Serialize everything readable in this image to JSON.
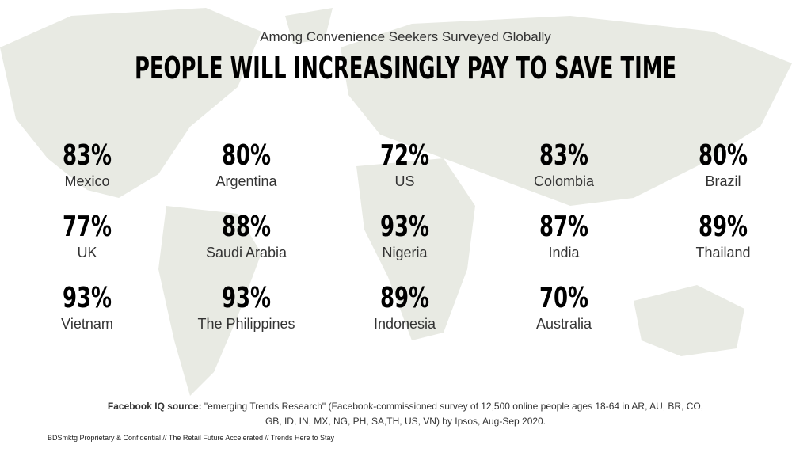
{
  "header": {
    "subtitle": "Among Convenience Seekers Surveyed Globally",
    "title": "PEOPLE WILL INCREASINGLY PAY TO SAVE TIME"
  },
  "stats": [
    {
      "value": "83%",
      "label": "Mexico"
    },
    {
      "value": "80%",
      "label": "Argentina"
    },
    {
      "value": "72%",
      "label": "US"
    },
    {
      "value": "83%",
      "label": "Colombia"
    },
    {
      "value": "80%",
      "label": "Brazil"
    },
    {
      "value": "77%",
      "label": "UK"
    },
    {
      "value": "88%",
      "label": "Saudi Arabia"
    },
    {
      "value": "93%",
      "label": "Nigeria"
    },
    {
      "value": "87%",
      "label": "India"
    },
    {
      "value": "89%",
      "label": "Thailand"
    },
    {
      "value": "93%",
      "label": "Vietnam"
    },
    {
      "value": "93%",
      "label": "The Philippines"
    },
    {
      "value": "89%",
      "label": "Indonesia"
    },
    {
      "value": "70%",
      "label": "Australia"
    }
  ],
  "source": {
    "lead": "Facebook IQ source:",
    "text": "\"emerging Trends Research\" (Facebook-commissioned  survey of 12,500 online people ages 18-64 in AR, AU, BR, CO, GB, ID, IN, MX, NG, PH, SA,TH, US, VN) by Ipsos, Aug-Sep 2020."
  },
  "footer": "BDSmktg Proprietary & Confidential // The Retail Future Accelerated  // Trends Here to Stay"
}
